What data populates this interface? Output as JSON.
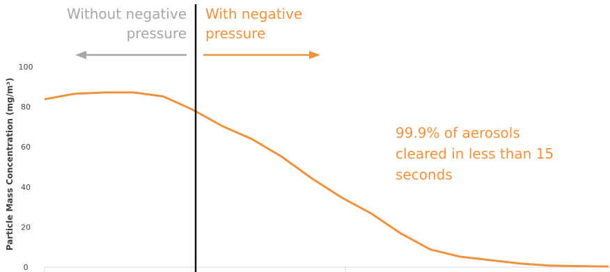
{
  "colors": {
    "series": "#f0913c",
    "left_text": "#a6a6a6",
    "divider": "#111111",
    "axis": "#d9d9d9"
  },
  "labels": {
    "left_line1": "Without negative",
    "left_line2": "pressure",
    "right_line1": "With negative",
    "right_line2": "pressure"
  },
  "annotation": {
    "line1": "99.9% of aerosols",
    "line2": "cleared in less than 15",
    "line3": "seconds"
  },
  "chart_data": {
    "type": "line",
    "ylabel": "Particle Mass Concentration (mg/m³)",
    "xlabel": "",
    "ylim": [
      0,
      100
    ],
    "yticks": [
      0,
      20,
      40,
      60,
      80,
      100
    ],
    "grid": false,
    "legend": "none",
    "x": [
      0,
      1,
      2,
      3,
      4,
      5,
      6,
      7,
      8,
      9,
      10,
      11,
      12,
      13,
      14,
      15,
      16,
      17,
      18,
      19
    ],
    "series": [
      {
        "values": [
          83.8,
          86.5,
          87.2,
          87.2,
          85.2,
          78.5,
          70.3,
          63.8,
          55.0,
          44.3,
          34.8,
          26.8,
          16.8,
          8.8,
          5.2,
          3.5,
          1.8,
          0.8,
          0.5,
          0.3
        ]
      }
    ]
  }
}
